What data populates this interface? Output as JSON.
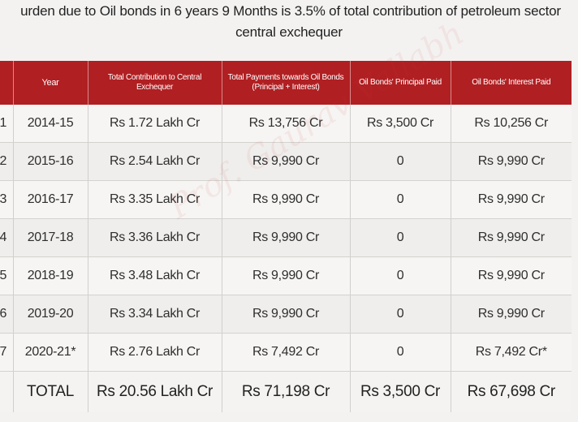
{
  "headline": {
    "line1": "urden due to Oil bonds in 6 years 9 Months is 3.5% of total contribution of petroleum sector",
    "line2": "central exchequer"
  },
  "table": {
    "headers": [
      "",
      "Year",
      "Total Contribution to Central Exchequer",
      "Total Payments towards Oil Bonds (Principal + Interest)",
      "Oil Bonds' Principal Paid",
      "Oil Bonds' Interest Paid"
    ],
    "rows": [
      {
        "sn": "1",
        "year": "2014-15",
        "contribution": "Rs 1.72 Lakh Cr",
        "payments": "Rs 13,756 Cr",
        "principal": "Rs 3,500 Cr",
        "interest": "Rs 10,256 Cr"
      },
      {
        "sn": "2",
        "year": "2015-16",
        "contribution": "Rs 2.54 Lakh Cr",
        "payments": "Rs 9,990 Cr",
        "principal": "0",
        "interest": "Rs 9,990 Cr"
      },
      {
        "sn": "3",
        "year": "2016-17",
        "contribution": "Rs 3.35 Lakh Cr",
        "payments": "Rs 9,990 Cr",
        "principal": "0",
        "interest": "Rs 9,990 Cr"
      },
      {
        "sn": "4",
        "year": "2017-18",
        "contribution": "Rs 3.36 Lakh Cr",
        "payments": "Rs 9,990 Cr",
        "principal": "0",
        "interest": "Rs 9,990 Cr"
      },
      {
        "sn": "5",
        "year": "2018-19",
        "contribution": "Rs 3.48 Lakh Cr",
        "payments": "Rs 9,990 Cr",
        "principal": "0",
        "interest": "Rs 9,990 Cr"
      },
      {
        "sn": "6",
        "year": "2019-20",
        "contribution": "Rs 3.34 Lakh Cr",
        "payments": "Rs 9,990 Cr",
        "principal": "0",
        "interest": "Rs 9,990 Cr"
      },
      {
        "sn": "7",
        "year": "2020-21*",
        "contribution": "Rs 2.76 Lakh Cr",
        "payments": "Rs 7,492 Cr",
        "principal": "0",
        "interest": "Rs 7,492 Cr*"
      }
    ],
    "total": {
      "label": "TOTAL",
      "contribution": "Rs 20.56 Lakh Cr",
      "payments": "Rs 71,198 Cr",
      "principal": "Rs 3,500 Cr",
      "interest": "Rs 67,698 Cr"
    }
  },
  "watermark": "Prof. Gaurav Vallabh",
  "colors": {
    "header_bg": "#b01f22",
    "header_text": "#ffffff",
    "page_bg": "#f3f2f1"
  }
}
